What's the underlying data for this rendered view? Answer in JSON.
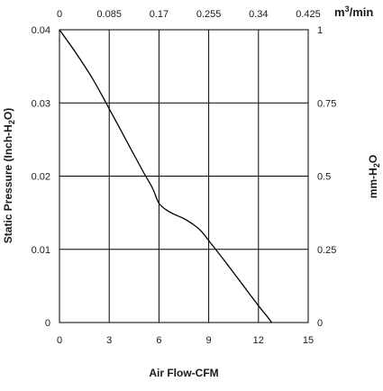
{
  "chart_data": {
    "type": "line",
    "xlabel": "Air Flow-CFM",
    "ylabel": "Static Pressure (Inch-H2O)",
    "ylabel_parts": {
      "pre": "Static Pressure (Inch-H",
      "sub": "2",
      "post": "O)"
    },
    "secondary_xlabel_parts": {
      "pre": "m",
      "sup": "3",
      "post": "/min"
    },
    "secondary_ylabel_parts": {
      "pre": "mm-H",
      "sub": "2",
      "post": "O"
    },
    "xlim": [
      0,
      15
    ],
    "ylim": [
      0,
      0.04
    ],
    "x_ticks": [
      {
        "value": 0,
        "label": "0"
      },
      {
        "value": 3,
        "label": "3"
      },
      {
        "value": 6,
        "label": "6"
      },
      {
        "value": 9,
        "label": "9"
      },
      {
        "value": 12,
        "label": "12"
      },
      {
        "value": 15,
        "label": "15"
      }
    ],
    "y_ticks": [
      {
        "value": 0,
        "label": "0"
      },
      {
        "value": 0.01,
        "label": "0.01"
      },
      {
        "value": 0.02,
        "label": "0.02"
      },
      {
        "value": 0.03,
        "label": "0.03"
      },
      {
        "value": 0.04,
        "label": "0.04"
      }
    ],
    "secondary_x_ticks": [
      "0",
      "0.085",
      "0.17",
      "0.255",
      "0.34",
      "0.425"
    ],
    "secondary_y_ticks": [
      "0",
      "0.25",
      "0.5",
      "0.75",
      "1"
    ],
    "grid": true,
    "series": [
      {
        "x": [
          0,
          1,
          2,
          3,
          4,
          5,
          5.6,
          6,
          6.5,
          7,
          7.5,
          8,
          8.5,
          9,
          10,
          11,
          12,
          12.5,
          12.8
        ],
        "y": [
          0.04,
          0.0368,
          0.0333,
          0.0292,
          0.025,
          0.0208,
          0.0184,
          0.0163,
          0.0153,
          0.0147,
          0.0142,
          0.0135,
          0.0126,
          0.0112,
          0.0083,
          0.0053,
          0.0023,
          0.0009,
          0
        ]
      }
    ]
  }
}
